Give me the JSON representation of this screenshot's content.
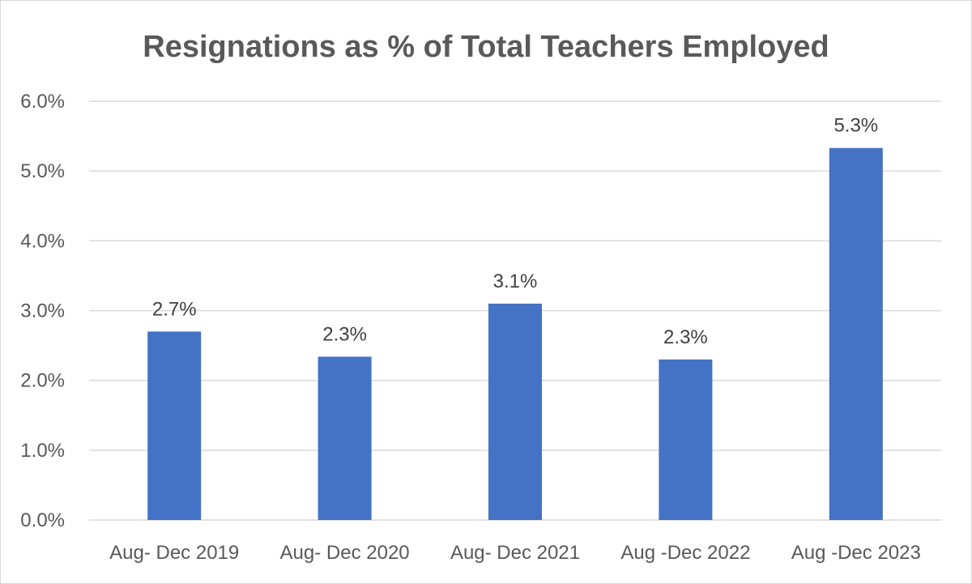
{
  "chart_data": {
    "type": "bar",
    "title": "Resignations as % of Total Teachers Employed",
    "categories": [
      "Aug- Dec 2019",
      "Aug- Dec 2020",
      "Aug- Dec 2021",
      "Aug -Dec 2022",
      "Aug -Dec 2023"
    ],
    "values": [
      2.7,
      2.34,
      3.1,
      2.3,
      5.33
    ],
    "data_labels": [
      "2.7%",
      "2.3%",
      "3.1%",
      "2.3%",
      "5.3%"
    ],
    "ylim": [
      0,
      6
    ],
    "y_ticks": [
      0,
      1,
      2,
      3,
      4,
      5,
      6
    ],
    "y_tick_labels": [
      "0.0%",
      "1.0%",
      "2.0%",
      "3.0%",
      "4.0%",
      "5.0%",
      "6.0%"
    ],
    "grid": true,
    "legend": "none",
    "colors": {
      "bar": "#4472c4",
      "grid": "#d9d9d9",
      "text": "#595959",
      "label": "#404040"
    }
  }
}
